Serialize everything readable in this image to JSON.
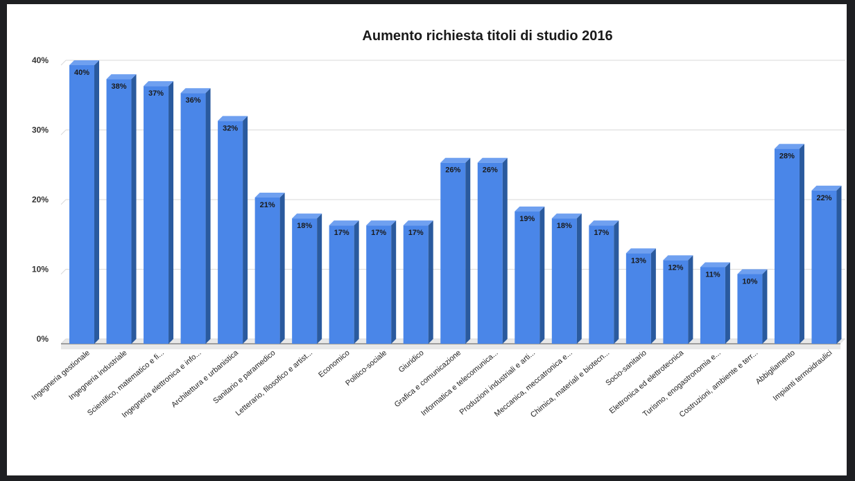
{
  "colors": {
    "bar_front": "#4a86e8",
    "bar_side": "#2a5a9e",
    "bar_top": "#6fa0f0",
    "grid": "#d9d9d9",
    "floor": "#e8e8e8"
  },
  "chart_data": {
    "type": "bar",
    "title": "Aumento richiesta titoli di studio 2016",
    "xlabel": "",
    "ylabel": "",
    "ylim": [
      0,
      40
    ],
    "y_ticks": [
      "0%",
      "10%",
      "20%",
      "30%",
      "40%"
    ],
    "grid": true,
    "categories": [
      "Ingegneria gestionale",
      "Ingegneria industriale",
      "Scientifico, matematico e fi...",
      "Ingegneria elettronica e info...",
      "Architettura e urbanistica",
      "Sanitario e paramedico",
      "Letterario, filosofico e artist...",
      "Economico",
      "Politico-sociale",
      "Giuridico",
      "Grafica e comunicazione",
      "Informatica e telecomunica...",
      "Produzioni industriali e arti...",
      "Meccanica, meccatronica e...",
      "Chimica, materiali e biotecn...",
      "Socio-sanitario",
      "Elettronica ed elettrotecnica",
      "Turismo, enogastronomia e...",
      "Costruzioni, ambiente e terr...",
      "Abbigliamento",
      "Impianti termoidraulici"
    ],
    "values": [
      40,
      38,
      37,
      36,
      32,
      21,
      18,
      17,
      17,
      17,
      26,
      26,
      19,
      18,
      17,
      13,
      12,
      11,
      10,
      28,
      22
    ],
    "value_labels": [
      "40%",
      "38%",
      "37%",
      "36%",
      "32%",
      "21%",
      "18%",
      "17%",
      "17%",
      "17%",
      "26%",
      "26%",
      "19%",
      "18%",
      "17%",
      "13%",
      "12%",
      "11%",
      "10%",
      "28%",
      "22%"
    ]
  }
}
